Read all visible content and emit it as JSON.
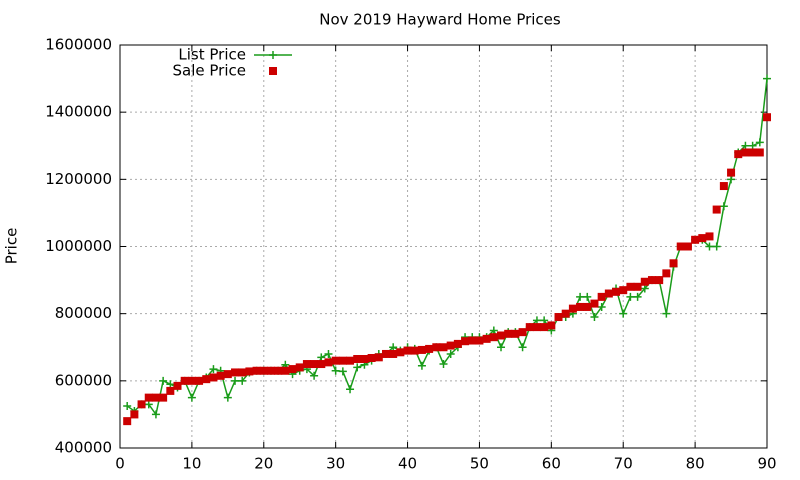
{
  "chart_data": {
    "type": "linespoints",
    "title": "Nov 2019 Hayward Home Prices",
    "ylabel": "Price",
    "x": [
      1,
      2,
      3,
      4,
      5,
      6,
      7,
      8,
      9,
      10,
      11,
      12,
      13,
      14,
      15,
      16,
      17,
      18,
      19,
      20,
      21,
      22,
      23,
      24,
      25,
      26,
      27,
      28,
      29,
      30,
      31,
      32,
      33,
      34,
      35,
      36,
      37,
      38,
      39,
      40,
      41,
      42,
      43,
      44,
      45,
      46,
      47,
      48,
      49,
      50,
      51,
      52,
      53,
      54,
      55,
      56,
      57,
      58,
      59,
      60,
      61,
      62,
      63,
      64,
      65,
      66,
      67,
      68,
      69,
      70,
      71,
      72,
      73,
      74,
      75,
      76,
      77,
      78,
      79,
      80,
      81,
      82,
      83,
      84,
      85,
      86,
      87,
      88,
      89,
      90
    ],
    "series": [
      {
        "name": "List Price",
        "color": "#1a9c1a",
        "style": "linespoints",
        "values": [
          525000,
          510000,
          530000,
          530000,
          500000,
          600000,
          590000,
          580000,
          600000,
          550000,
          600000,
          610000,
          635000,
          630000,
          550000,
          600000,
          600000,
          625000,
          630000,
          630000,
          630000,
          630000,
          648000,
          620000,
          630000,
          635000,
          615000,
          670000,
          680000,
          630000,
          628000,
          575000,
          640000,
          648000,
          660000,
          680000,
          680000,
          700000,
          690000,
          700000,
          695000,
          645000,
          690000,
          700000,
          650000,
          680000,
          700000,
          730000,
          730000,
          730000,
          730000,
          750000,
          700000,
          745000,
          745000,
          700000,
          760000,
          780000,
          780000,
          750000,
          790000,
          790000,
          800000,
          850000,
          850000,
          790000,
          820000,
          860000,
          875000,
          800000,
          850000,
          850000,
          875000,
          900000,
          900000,
          800000,
          940000,
          1000000,
          1000000,
          1020000,
          1020000,
          1000000,
          1000000,
          1120000,
          1200000,
          1280000,
          1300000,
          1300000,
          1310000,
          1500000
        ]
      },
      {
        "name": "Sale Price",
        "color": "#cc0000",
        "style": "points",
        "values": [
          480000,
          500000,
          530000,
          550000,
          550000,
          550000,
          570000,
          585000,
          600000,
          600000,
          600000,
          605000,
          610000,
          615000,
          620000,
          625000,
          625000,
          628000,
          630000,
          630000,
          630000,
          630000,
          630000,
          635000,
          640000,
          650000,
          650000,
          650000,
          655000,
          660000,
          660000,
          660000,
          665000,
          665000,
          668000,
          670000,
          680000,
          680000,
          685000,
          690000,
          690000,
          692000,
          695000,
          700000,
          700000,
          705000,
          710000,
          718000,
          720000,
          720000,
          725000,
          730000,
          735000,
          740000,
          740000,
          745000,
          760000,
          760000,
          760000,
          765000,
          790000,
          800000,
          815000,
          820000,
          820000,
          830000,
          850000,
          860000,
          865000,
          870000,
          880000,
          880000,
          895000,
          900000,
          900000,
          920000,
          950000,
          1000000,
          1000000,
          1020000,
          1025000,
          1030000,
          1110000,
          1180000,
          1220000,
          1275000,
          1280000,
          1280000,
          1280000,
          1385000
        ]
      }
    ],
    "xlim": [
      0,
      90
    ],
    "xticks": [
      0,
      10,
      20,
      30,
      40,
      50,
      60,
      70,
      80,
      90
    ],
    "ylim": [
      400000,
      1600000
    ],
    "yticks": [
      400000,
      600000,
      800000,
      1000000,
      1200000,
      1400000,
      1600000
    ],
    "grid": true,
    "legend": "top left"
  }
}
